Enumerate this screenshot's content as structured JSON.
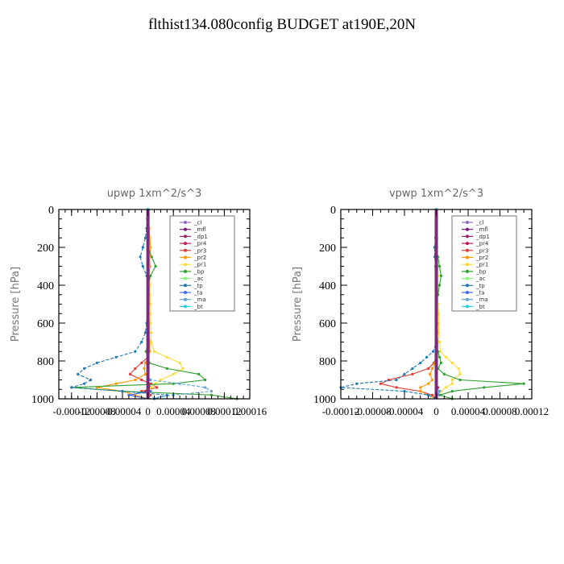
{
  "title": "flthist134.080config  BUDGET at190E,20N",
  "legend_colors": {
    "_cl": "#9467bd",
    "_mfl": "#7b1a7b",
    "_dp1": "#a01f6a",
    "_pr4": "#c2185b",
    "_pr3": "#e53935",
    "_pr2": "#ff9800",
    "_pr1": "#fdd835",
    "_bp": "#2ca02c",
    "_ac": "#7cfc6b",
    "_tp": "#1f77b4",
    "_ta": "#4169e1",
    "_ma": "#5fa3d8",
    "_bt": "#19d3e6"
  },
  "chart_data": [
    {
      "type": "line",
      "title": "upwp   1xm^2/s^3",
      "xlabel": "",
      "ylabel": "Pressure [hPa]",
      "xlim": [
        -0.00014,
        0.00016
      ],
      "ylim": [
        1000,
        0
      ],
      "xticks": [
        -0.00012,
        -8e-05,
        -4e-05,
        0,
        4e-05,
        8e-05,
        0.00012,
        0.00016
      ],
      "xtick_labels": [
        "-0.00012",
        "-0.00008",
        "-0.00004",
        "0",
        "0.00004",
        "0.00008",
        "0.00012",
        "0.00016"
      ],
      "yticks": [
        0,
        200,
        400,
        600,
        800,
        1000
      ],
      "ytick_labels": [
        "0",
        "200",
        "400",
        "600",
        "800",
        "1000"
      ],
      "grid": false,
      "legend_position": "top-right",
      "y": [
        0,
        50,
        100,
        150,
        200,
        250,
        300,
        350,
        400,
        450,
        500,
        550,
        600,
        650,
        700,
        750,
        780,
        810,
        840,
        870,
        900,
        920,
        940,
        960,
        980,
        1000
      ],
      "series": [
        {
          "name": "_cl",
          "values": [
            0,
            0,
            0,
            0,
            0,
            0,
            0,
            0,
            0,
            0,
            0,
            0,
            0,
            0,
            0,
            0,
            0,
            0,
            0,
            0,
            0,
            0,
            0,
            0,
            0,
            0
          ]
        },
        {
          "name": "_mfl",
          "values": [
            0,
            0,
            0,
            0,
            0,
            0,
            0,
            0,
            0,
            0,
            0,
            0,
            0,
            0,
            0,
            0,
            0,
            0,
            0,
            0,
            0,
            0,
            0,
            0,
            0,
            0
          ]
        },
        {
          "name": "_dp1",
          "values": [
            0,
            0,
            0,
            0,
            0,
            0,
            0,
            0,
            0,
            0,
            0,
            0,
            0,
            0,
            0,
            0,
            0,
            0,
            0,
            0,
            0,
            2e-06,
            4e-06,
            -4e-06,
            2e-06,
            0
          ]
        },
        {
          "name": "_pr4",
          "values": [
            0,
            0,
            0,
            0,
            0,
            0,
            0,
            0,
            0,
            0,
            0,
            0,
            0,
            0,
            0,
            0,
            0,
            0,
            0,
            0,
            0,
            0,
            0,
            0,
            0,
            0
          ]
        },
        {
          "name": "_pr3",
          "values": [
            0,
            0,
            0,
            0,
            0,
            2e-06,
            3e-06,
            2e-06,
            0,
            0,
            0,
            0,
            0,
            0,
            0,
            2e-06,
            0,
            -1e-05,
            -2e-05,
            -2.8e-05,
            -1e-05,
            5e-06,
            1.4e-05,
            -1e-05,
            4e-06,
            0
          ]
        },
        {
          "name": "_pr2",
          "values": [
            0,
            1e-06,
            2e-06,
            3e-06,
            4e-06,
            3e-06,
            2e-06,
            2e-06,
            1e-06,
            1e-06,
            1e-06,
            1e-06,
            2e-06,
            2e-06,
            3e-06,
            3e-06,
            0,
            -4e-06,
            -6e-06,
            -4e-06,
            -2e-05,
            -5e-05,
            -8e-05,
            -4e-05,
            -2e-05,
            0
          ]
        },
        {
          "name": "_pr1",
          "values": [
            0,
            0,
            1e-06,
            2e-06,
            2e-06,
            2e-06,
            2e-06,
            3e-06,
            3e-06,
            3e-06,
            4e-06,
            4e-06,
            4e-06,
            5e-06,
            5e-06,
            1e-05,
            3e-05,
            5e-05,
            5.5e-05,
            4e-05,
            2e-05,
            1.2e-05,
            5e-06,
            2e-06,
            1e-06,
            0
          ]
        },
        {
          "name": "_bp",
          "values": [
            0,
            0,
            0,
            0,
            0,
            6e-06,
            1.2e-05,
            4e-06,
            0,
            0,
            0,
            0,
            0,
            0,
            0,
            -3e-06,
            0,
            2e-06,
            3e-05,
            8e-05,
            9e-05,
            4e-05,
            -0.00012,
            -4e-05,
            0.0001,
            0.00014
          ]
        },
        {
          "name": "_ac",
          "values": [
            0,
            0,
            0,
            0,
            0,
            0,
            0,
            0,
            0,
            0,
            0,
            0,
            0,
            0,
            0,
            0,
            0,
            0,
            0,
            0,
            0,
            0,
            0,
            0,
            0,
            0
          ]
        },
        {
          "name": "_tp",
          "values": [
            0,
            -1e-06,
            -2e-06,
            -4e-06,
            -8e-06,
            -1.2e-05,
            -8e-06,
            -2e-06,
            0,
            0,
            0,
            0,
            -2e-06,
            -4e-06,
            -1e-05,
            -2e-05,
            -5e-05,
            -8e-05,
            -0.0001,
            -0.00011,
            -9e-05,
            -0.0001,
            -0.00012,
            -4e-05,
            3e-05,
            1e-05
          ]
        },
        {
          "name": "_ta",
          "values": [
            0,
            0,
            0,
            0,
            0,
            0,
            0,
            0,
            0,
            0,
            0,
            0,
            0,
            0,
            0,
            0,
            0,
            0,
            0,
            0,
            0,
            0,
            0,
            4e-06,
            -3e-05,
            0
          ]
        },
        {
          "name": "_ma",
          "values": [
            0,
            0,
            0,
            0,
            0,
            0,
            0,
            0,
            0,
            0,
            0,
            0,
            0,
            0,
            0,
            0,
            0,
            0,
            0,
            0,
            4e-06,
            5e-05,
            9e-05,
            0.0001,
            4e-05,
            0
          ]
        },
        {
          "name": "_bt",
          "values": [
            0,
            0,
            0,
            0,
            0,
            0,
            0,
            0,
            0,
            0,
            0,
            0,
            0,
            0,
            0,
            0,
            0,
            0,
            0,
            0,
            0,
            0,
            0,
            0,
            0,
            0
          ]
        }
      ]
    },
    {
      "type": "line",
      "title": "vpwp   1xm^2/s^3",
      "xlabel": "",
      "ylabel": "Pressure [hPa]",
      "xlim": [
        -0.00012,
        0.00012
      ],
      "ylim": [
        1000,
        0
      ],
      "xticks": [
        -0.00012,
        -8e-05,
        -4e-05,
        0,
        4e-05,
        8e-05,
        0.00012
      ],
      "xtick_labels": [
        "-0.00012",
        "-0.00008",
        "-0.00004",
        "0",
        "0.00004",
        "0.00008",
        "0.00012"
      ],
      "yticks": [
        0,
        200,
        400,
        600,
        800,
        1000
      ],
      "ytick_labels": [
        "0",
        "200",
        "400",
        "600",
        "800",
        "1000"
      ],
      "grid": false,
      "legend_position": "top-right",
      "y": [
        0,
        50,
        100,
        150,
        200,
        250,
        300,
        350,
        400,
        450,
        500,
        550,
        600,
        650,
        700,
        750,
        780,
        810,
        840,
        870,
        900,
        920,
        940,
        960,
        980,
        1000
      ],
      "series": [
        {
          "name": "_cl",
          "values": [
            0,
            0,
            0,
            0,
            0,
            0,
            0,
            0,
            0,
            0,
            0,
            0,
            0,
            0,
            0,
            0,
            0,
            0,
            0,
            0,
            0,
            0,
            0,
            0,
            0,
            0
          ]
        },
        {
          "name": "_mfl",
          "values": [
            0,
            0,
            0,
            0,
            0,
            0,
            0,
            0,
            0,
            0,
            0,
            0,
            0,
            0,
            0,
            0,
            0,
            0,
            0,
            0,
            0,
            0,
            0,
            0,
            0,
            0
          ]
        },
        {
          "name": "_dp1",
          "values": [
            0,
            0,
            0,
            0,
            0,
            0,
            0,
            0,
            0,
            0,
            0,
            0,
            0,
            0,
            0,
            0,
            0,
            0,
            0,
            0,
            0,
            0,
            2e-06,
            0,
            0,
            0
          ]
        },
        {
          "name": "_pr4",
          "values": [
            0,
            0,
            0,
            0,
            0,
            0,
            0,
            0,
            0,
            0,
            0,
            0,
            0,
            0,
            0,
            0,
            0,
            0,
            0,
            0,
            0,
            0,
            0,
            0,
            0,
            0
          ]
        },
        {
          "name": "_pr3",
          "values": [
            0,
            0,
            0,
            0,
            0,
            0,
            0,
            0,
            0,
            0,
            0,
            0,
            0,
            0,
            0,
            0,
            0,
            -3e-06,
            -1e-05,
            -3e-05,
            -6e-05,
            -7e-05,
            -5e-05,
            -2e-05,
            -5e-06,
            0
          ]
        },
        {
          "name": "_pr2",
          "values": [
            0,
            0,
            0,
            0,
            0,
            1e-06,
            1e-06,
            1e-06,
            1e-06,
            1e-06,
            1e-06,
            1e-06,
            1e-06,
            1e-06,
            2e-06,
            2e-06,
            0,
            -2e-06,
            -5e-06,
            -8e-06,
            -5e-06,
            -1e-05,
            -2e-05,
            -2e-05,
            -1e-05,
            0
          ]
        },
        {
          "name": "_pr1",
          "values": [
            0,
            0,
            0,
            1e-06,
            1e-06,
            1e-06,
            2e-06,
            2e-06,
            2e-06,
            2e-06,
            2e-06,
            3e-06,
            3e-06,
            3e-06,
            4e-06,
            5e-06,
            1.2e-05,
            2e-05,
            2.8e-05,
            3e-05,
            2e-05,
            2e-05,
            1.2e-05,
            6e-06,
            2e-06,
            0
          ]
        },
        {
          "name": "_bp",
          "values": [
            0,
            0,
            0,
            0,
            0,
            2e-06,
            4e-06,
            6e-06,
            4e-06,
            2e-06,
            0,
            0,
            0,
            0,
            0,
            2e-06,
            4e-06,
            6e-06,
            2e-06,
            1e-05,
            3e-05,
            0.00011,
            6e-05,
            2e-05,
            5e-06,
            2e-05
          ]
        },
        {
          "name": "_ac",
          "values": [
            0,
            0,
            0,
            0,
            0,
            0,
            0,
            0,
            0,
            0,
            0,
            0,
            0,
            0,
            0,
            0,
            0,
            0,
            0,
            0,
            0,
            0,
            0,
            0,
            0,
            0
          ]
        },
        {
          "name": "_tp",
          "values": [
            0,
            0,
            0,
            -1e-06,
            -2e-06,
            -2e-06,
            -1e-06,
            0,
            0,
            0,
            0,
            0,
            0,
            0,
            0,
            -4e-06,
            -1.2e-05,
            -2e-05,
            -3e-05,
            -4e-05,
            -5e-05,
            -0.0001,
            -0.00012,
            -4e-05,
            -1e-05,
            0
          ]
        },
        {
          "name": "_ta",
          "values": [
            0,
            0,
            0,
            0,
            0,
            0,
            0,
            0,
            0,
            0,
            0,
            0,
            0,
            0,
            0,
            0,
            0,
            0,
            0,
            0,
            0,
            0,
            0,
            0,
            0,
            0
          ]
        },
        {
          "name": "_ma",
          "values": [
            0,
            0,
            0,
            0,
            0,
            0,
            0,
            0,
            0,
            0,
            0,
            0,
            0,
            0,
            0,
            0,
            0,
            0,
            0,
            0,
            0,
            0,
            0,
            4e-06,
            2e-06,
            0
          ]
        },
        {
          "name": "_bt",
          "values": [
            0,
            0,
            0,
            0,
            0,
            0,
            0,
            0,
            0,
            0,
            0,
            0,
            0,
            0,
            0,
            0,
            0,
            0,
            0,
            0,
            0,
            0,
            0,
            0,
            0,
            0
          ]
        }
      ]
    }
  ]
}
